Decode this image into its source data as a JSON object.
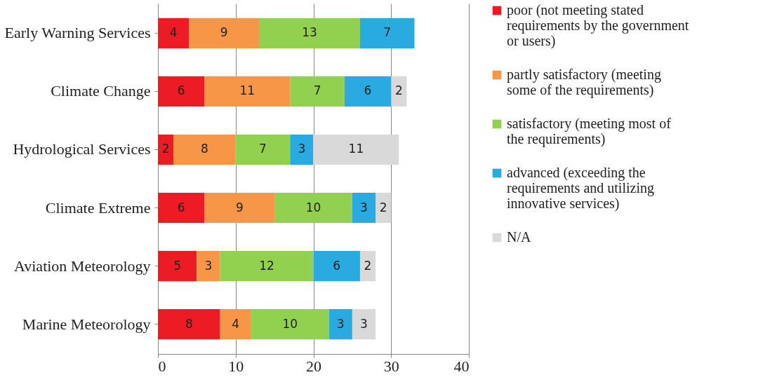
{
  "chart_data": {
    "type": "bar",
    "orientation": "horizontal",
    "stacked": true,
    "categories": [
      "Early Warning Services",
      "Climate Change",
      "Hydrological Services",
      "Climate Extreme",
      "Aviation Meteorology",
      "Marine Meteorology"
    ],
    "series": [
      {
        "name": "poor (not meeting stated requirements by the government or users)",
        "color": "#ed1c24",
        "values": [
          4,
          6,
          2,
          6,
          5,
          8
        ]
      },
      {
        "name": "partly satisfactory (meeting some of the requirements)",
        "color": "#f79646",
        "values": [
          9,
          11,
          8,
          9,
          3,
          4
        ]
      },
      {
        "name": "satisfactory (meeting most of the requirements)",
        "color": "#92d050",
        "values": [
          13,
          7,
          7,
          10,
          12,
          10
        ]
      },
      {
        "name": "advanced (exceeding the requirements and utilizing innovative services)",
        "color": "#29abe2",
        "values": [
          7,
          6,
          3,
          3,
          6,
          3
        ]
      },
      {
        "name": "N/A",
        "color": "#d9d9d9",
        "values": [
          null,
          2,
          11,
          2,
          2,
          3
        ]
      }
    ],
    "xlim": [
      0,
      40
    ],
    "xticks": [
      0,
      10,
      20,
      30,
      40
    ],
    "grid": "x",
    "legend": "right",
    "data_labels": true
  }
}
